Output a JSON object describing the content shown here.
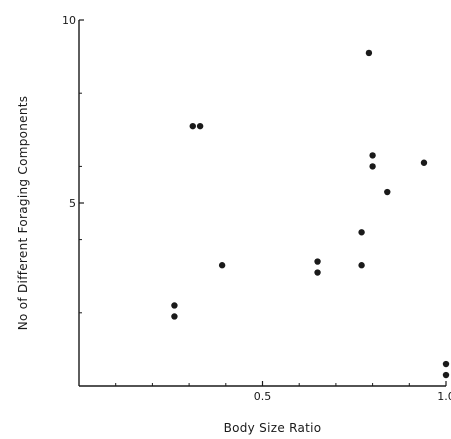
{
  "chart_data": {
    "type": "scatter",
    "xlabel": "Body Size Ratio",
    "ylabel": "No of Different Foraging Components",
    "xlim": [
      0,
      1.0
    ],
    "ylim": [
      0,
      10
    ],
    "x_ticks": [
      {
        "value": 0.5,
        "label": "0.5"
      },
      {
        "value": 1.0,
        "label": "1.0"
      }
    ],
    "x_minor_ticks": [
      0.1,
      0.2,
      0.3,
      0.4,
      0.6,
      0.7,
      0.8,
      0.9
    ],
    "y_ticks": [
      {
        "value": 5,
        "label": "5"
      },
      {
        "value": 10,
        "label": "10"
      }
    ],
    "y_minor_ticks": [
      2,
      4,
      6,
      8
    ],
    "grid": false,
    "points": [
      {
        "x": 0.26,
        "y": 2.2
      },
      {
        "x": 0.26,
        "y": 1.9
      },
      {
        "x": 0.31,
        "y": 7.1
      },
      {
        "x": 0.33,
        "y": 7.1
      },
      {
        "x": 0.39,
        "y": 3.3
      },
      {
        "x": 0.65,
        "y": 3.4
      },
      {
        "x": 0.65,
        "y": 3.1
      },
      {
        "x": 0.77,
        "y": 4.2
      },
      {
        "x": 0.77,
        "y": 3.3
      },
      {
        "x": 0.79,
        "y": 9.1
      },
      {
        "x": 0.8,
        "y": 6.3
      },
      {
        "x": 0.8,
        "y": 6.0
      },
      {
        "x": 0.84,
        "y": 5.3
      },
      {
        "x": 0.94,
        "y": 6.1
      },
      {
        "x": 1.0,
        "y": 0.3
      },
      {
        "x": 1.0,
        "y": 0.6
      }
    ]
  },
  "colors": {
    "ink": "#1a1a1a",
    "background": "#ffffff"
  }
}
